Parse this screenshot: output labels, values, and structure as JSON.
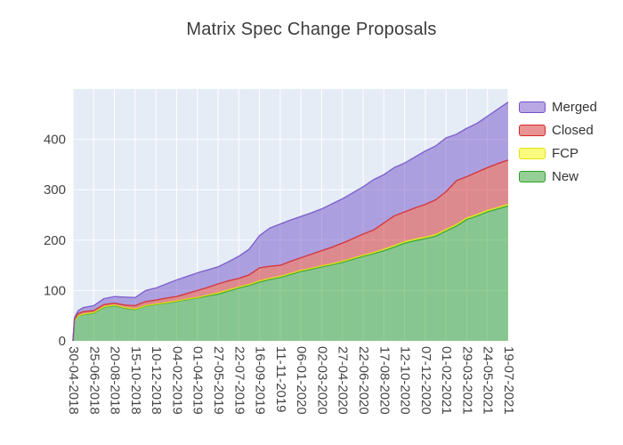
{
  "chart_data": {
    "type": "area",
    "title": "Matrix Spec Change Proposals",
    "stacked": true,
    "plot_bg_color": "#e5ecf6",
    "grid_color": "#ffffff",
    "y_ticks": [
      0,
      100,
      200,
      300,
      400
    ],
    "y_max": 500,
    "x_tick_interval_days": 56,
    "x_max_days": 1176,
    "x_tick_labels": [
      "30-04-2018",
      "25-06-2018",
      "20-08-2018",
      "15-10-2018",
      "10-12-2018",
      "04-02-2019",
      "01-04-2019",
      "27-05-2019",
      "22-07-2019",
      "16-09-2019",
      "11-11-2019",
      "06-01-2020",
      "02-03-2020",
      "27-04-2020",
      "22-06-2020",
      "17-08-2020",
      "12-10-2020",
      "07-12-2020",
      "01-02-2021",
      "29-03-2021",
      "24-05-2021",
      "19-07-2021"
    ],
    "x_days": [
      0,
      4,
      14,
      28,
      56,
      84,
      112,
      140,
      168,
      196,
      224,
      252,
      280,
      308,
      336,
      364,
      392,
      420,
      448,
      476,
      504,
      532,
      560,
      588,
      616,
      644,
      672,
      700,
      728,
      756,
      784,
      812,
      840,
      868,
      896,
      924,
      952,
      980,
      1008,
      1036,
      1064,
      1092,
      1120,
      1148,
      1176
    ],
    "series": [
      {
        "name": "New",
        "line_color": "#2ca02c",
        "fill_color": "#2ca02c",
        "fill_opacity": 0.5,
        "values": [
          0,
          40,
          50,
          52,
          55,
          67,
          70,
          65,
          62,
          69,
          72,
          75,
          78,
          82,
          85,
          89,
          93,
          99,
          105,
          110,
          117,
          122,
          126,
          132,
          138,
          142,
          147,
          151,
          156,
          162,
          168,
          173,
          179,
          186,
          194,
          199,
          203,
          208,
          218,
          228,
          241,
          248,
          256,
          262,
          268
        ]
      },
      {
        "name": "FCP",
        "line_color": "#e3e30c",
        "fill_color": "#f5f500",
        "fill_opacity": 0.5,
        "values": [
          0,
          0,
          0,
          1,
          1,
          1,
          1,
          1,
          1,
          1,
          1,
          1,
          1,
          1,
          1,
          2,
          2,
          2,
          2,
          2,
          2,
          2,
          2,
          2,
          2,
          2,
          2,
          2,
          2,
          2,
          2,
          2,
          3,
          3,
          3,
          3,
          3,
          3,
          3,
          3,
          3,
          3,
          3,
          3,
          3
        ]
      },
      {
        "name": "Closed",
        "line_color": "#d62728",
        "fill_color": "#d62728",
        "fill_opacity": 0.5,
        "values": [
          0,
          3,
          4,
          5,
          4,
          4,
          4,
          5,
          7,
          8,
          8,
          9,
          9,
          11,
          14,
          15,
          18,
          18,
          17,
          19,
          26,
          24,
          22,
          24,
          25,
          28,
          30,
          33,
          36,
          39,
          42,
          45,
          52,
          59,
          59,
          62,
          65,
          69,
          75,
          87,
          82,
          84,
          85,
          87,
          88
        ]
      },
      {
        "name": "Merged",
        "line_color": "#7352c8",
        "fill_color": "#7352c8",
        "fill_opacity": 0.5,
        "values": [
          0,
          3,
          6,
          8,
          10,
          12,
          13,
          16,
          16,
          22,
          24,
          28,
          33,
          34,
          35,
          35,
          34,
          38,
          44,
          51,
          64,
          76,
          82,
          82,
          82,
          82,
          83,
          86,
          88,
          91,
          94,
          100,
          96,
          96,
          97,
          101,
          106,
          107,
          107,
          92,
          96,
          97,
          102,
          108,
          115
        ]
      }
    ],
    "legend": [
      {
        "label": "Merged",
        "line_color": "#7352c8",
        "fill_color": "#7352c8",
        "fill_opacity": 0.5
      },
      {
        "label": "Closed",
        "line_color": "#d62728",
        "fill_color": "#d62728",
        "fill_opacity": 0.5
      },
      {
        "label": "FCP",
        "line_color": "#e3e30c",
        "fill_color": "#f5f500",
        "fill_opacity": 0.5
      },
      {
        "label": "New",
        "line_color": "#2ca02c",
        "fill_color": "#2ca02c",
        "fill_opacity": 0.5
      }
    ]
  }
}
